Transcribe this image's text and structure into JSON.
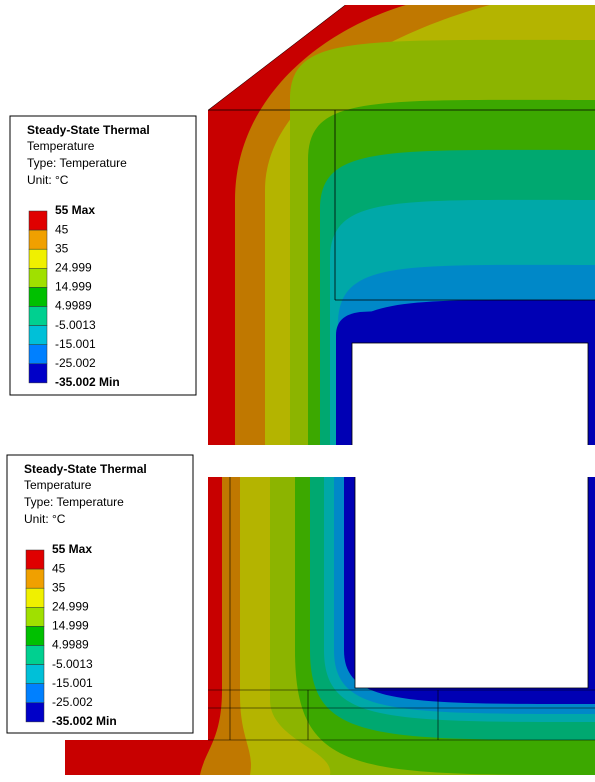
{
  "panels": [
    {
      "legend": {
        "title": "Steady-State Thermal",
        "lines": [
          "Temperature",
          "Type: Temperature",
          "Unit: °C"
        ],
        "labels": [
          "55 Max",
          "45",
          "35",
          "24.999",
          "14.999",
          "4.9989",
          "-5.0013",
          "-15.001",
          "-25.002",
          "-35.002 Min"
        ],
        "colors": [
          "#e00000",
          "#f0a000",
          "#f0f000",
          "#a0e000",
          "#00c000",
          "#00d090",
          "#00c0d8",
          "#0080ff",
          "#0000c8"
        ]
      }
    },
    {
      "legend": {
        "title": "Steady-State Thermal",
        "lines": [
          "Temperature",
          "Type: Temperature",
          "Unit: °C"
        ],
        "labels": [
          "55 Max",
          "45",
          "35",
          "24.999",
          "14.999",
          "4.9989",
          "-5.0013",
          "-15.001",
          "-25.002",
          "-35.002 Min"
        ],
        "colors": [
          "#e00000",
          "#f0a000",
          "#f0f000",
          "#a0e000",
          "#00c000",
          "#00d090",
          "#00c0d8",
          "#0080ff",
          "#0000c8"
        ]
      }
    }
  ]
}
